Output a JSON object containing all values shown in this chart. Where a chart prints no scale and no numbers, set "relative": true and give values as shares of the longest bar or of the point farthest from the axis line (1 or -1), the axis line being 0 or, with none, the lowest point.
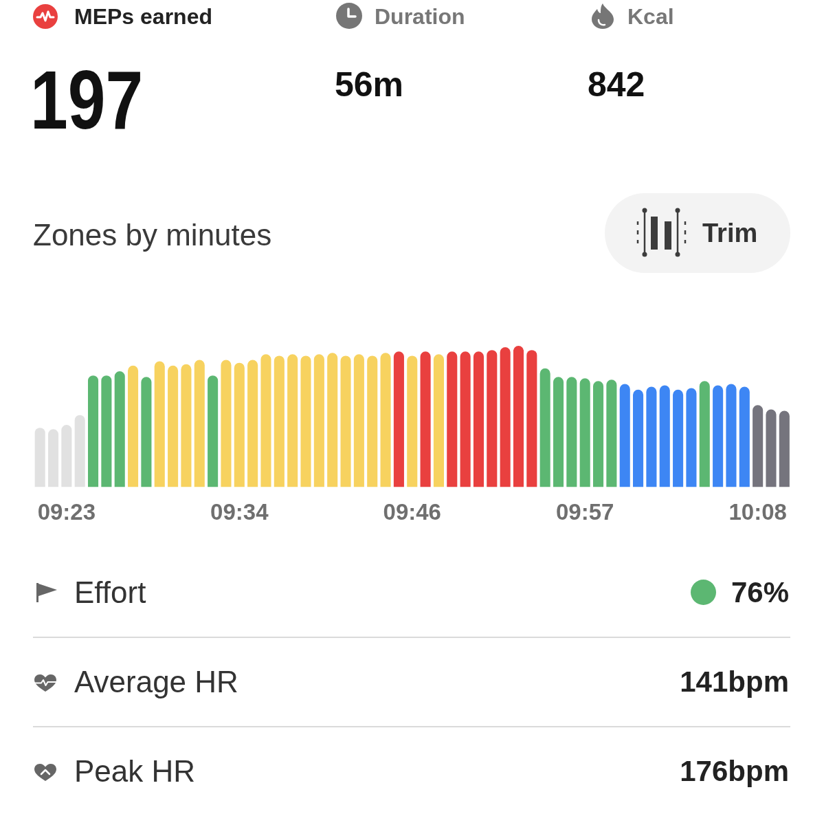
{
  "chart_data": [
    {
      "type": "other",
      "annotations": [
        "MEPs earned",
        "197",
        "Duration",
        "56m",
        "Kcal",
        "842"
      ]
    },
    {
      "type": "bar",
      "title": "Zones by minutes",
      "annotations": [
        "Trim"
      ],
      "relative": true,
      "categories": [
        null,
        null,
        "09:23",
        null,
        null,
        null,
        null,
        null,
        null,
        null,
        null,
        null,
        null,
        null,
        null,
        "09:34",
        null,
        null,
        null,
        null,
        null,
        null,
        null,
        null,
        null,
        null,
        null,
        null,
        "09:46",
        null,
        null,
        null,
        null,
        null,
        null,
        null,
        null,
        null,
        null,
        null,
        null,
        "09:57",
        null,
        null,
        null,
        null,
        null,
        null,
        null,
        null,
        null,
        null,
        null,
        null,
        "10:08",
        null,
        null
      ],
      "values": [
        0.42,
        0.41,
        0.44,
        0.51,
        0.79,
        0.79,
        0.82,
        0.86,
        0.78,
        0.89,
        0.86,
        0.87,
        0.9,
        0.79,
        0.9,
        0.88,
        0.9,
        0.94,
        0.93,
        0.94,
        0.93,
        0.94,
        0.95,
        0.93,
        0.94,
        0.93,
        0.95,
        0.96,
        0.93,
        0.96,
        0.94,
        0.96,
        0.96,
        0.96,
        0.97,
        0.99,
        1,
        0.97,
        0.84,
        0.78,
        0.78,
        0.77,
        0.75,
        0.76,
        0.73,
        0.69,
        0.71,
        0.72,
        0.69,
        0.7,
        0.75,
        0.72,
        0.73,
        0.71,
        0.58,
        0.55,
        0.54
      ],
      "colors": [
        "#e1e1e1",
        "#e1e1e1",
        "#e1e1e1",
        "#e1e1e1",
        "#5cb772",
        "#5cb772",
        "#5cb772",
        "#f7d25f",
        "#5cb772",
        "#f7d25f",
        "#f7d25f",
        "#f7d25f",
        "#f7d25f",
        "#5cb772",
        "#f7d25f",
        "#f7d25f",
        "#f7d25f",
        "#f7d25f",
        "#f7d25f",
        "#f7d25f",
        "#f7d25f",
        "#f7d25f",
        "#f7d25f",
        "#f7d25f",
        "#f7d25f",
        "#f7d25f",
        "#f7d25f",
        "#e9403f",
        "#f7d25f",
        "#e9403f",
        "#f7d25f",
        "#e9403f",
        "#e9403f",
        "#e9403f",
        "#e9403f",
        "#e9403f",
        "#e9403f",
        "#e9403f",
        "#5cb772",
        "#5cb772",
        "#5cb772",
        "#5cb772",
        "#5cb772",
        "#5cb772",
        "#3d86f4",
        "#3d86f4",
        "#3d86f4",
        "#3d86f4",
        "#3d86f4",
        "#3d86f4",
        "#5cb772",
        "#3d86f4",
        "#3d86f4",
        "#3d86f4",
        "#75747d",
        "#75747d",
        "#75747d"
      ]
    },
    {
      "type": "other",
      "annotations": [
        "Effort",
        "76%",
        "Average HR",
        "141bpm",
        "Peak HR",
        "176bpm"
      ]
    }
  ]
}
